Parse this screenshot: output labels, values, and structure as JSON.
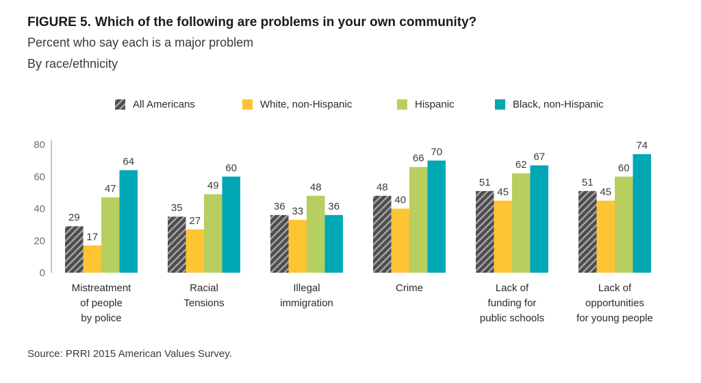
{
  "header": {
    "figure_label": "FIGURE 5.",
    "title": "Which of the following are problems in your own community?",
    "subtitle1": "Percent who say each is a major problem",
    "subtitle2": "By race/ethnicity"
  },
  "legend": [
    {
      "name": "All Americans",
      "color": "#4d4d4f",
      "pattern": "hatch"
    },
    {
      "name": "White, non-Hispanic",
      "color": "#fdc434",
      "pattern": "solid"
    },
    {
      "name": "Hispanic",
      "color": "#b6cf5f",
      "pattern": "solid"
    },
    {
      "name": "Black, non-Hispanic",
      "color": "#00a7b5",
      "pattern": "solid"
    }
  ],
  "chart_data": {
    "type": "bar",
    "title": "Which of the following are problems in your own community?",
    "xlabel": "",
    "ylabel": "",
    "ylim": [
      0,
      80
    ],
    "yticks": [
      0,
      20,
      40,
      60,
      80
    ],
    "grid": false,
    "categories": [
      [
        "Mistreatment",
        "of people",
        "by police"
      ],
      [
        "Racial",
        "Tensions"
      ],
      [
        "Illegal",
        "immigration"
      ],
      [
        "Crime"
      ],
      [
        "Lack of",
        "funding for",
        "public schools"
      ],
      [
        "Lack of",
        "opportunities",
        "for young people"
      ]
    ],
    "series": [
      {
        "name": "All Americans",
        "values": [
          29,
          35,
          36,
          48,
          51,
          51
        ]
      },
      {
        "name": "White, non-Hispanic",
        "values": [
          17,
          27,
          33,
          40,
          45,
          45
        ]
      },
      {
        "name": "Hispanic",
        "values": [
          47,
          49,
          48,
          66,
          62,
          60
        ]
      },
      {
        "name": "Black, non-Hispanic",
        "values": [
          64,
          60,
          36,
          70,
          67,
          74
        ]
      }
    ]
  },
  "source": "Source: PRRI 2015 American Values Survey."
}
